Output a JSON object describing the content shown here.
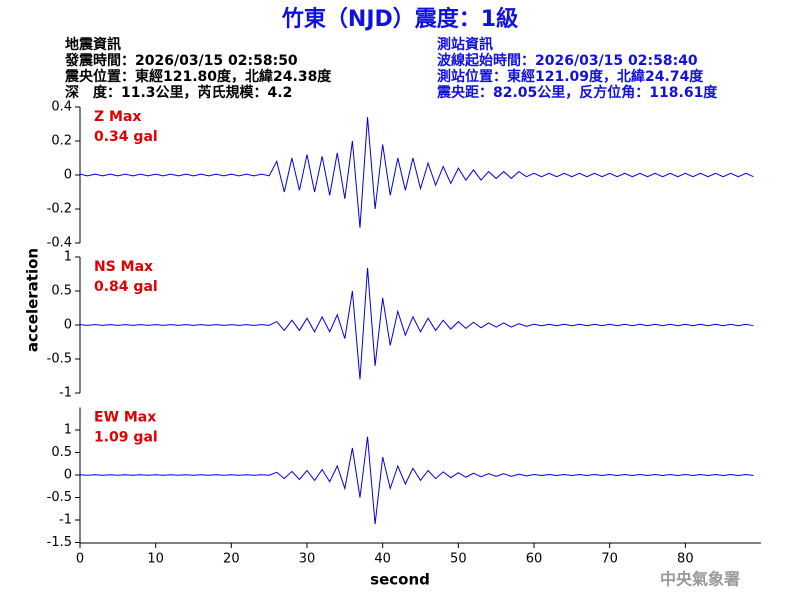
{
  "chart_data": {
    "type": "line",
    "title": "竹東（NJD）震度：1級",
    "info_left": [
      "地震資訊",
      "發震時間：2026/03/15 02:58:50",
      "震央位置：東經121.80度，北緯24.38度",
      "深　度：11.3公里，芮氏規模：4.2"
    ],
    "info_right": [
      "測站資訊",
      "波線起始時間：2026/03/15 02:58:40",
      "測站位置：東經121.09度，北緯24.74度",
      "震央距：82.05公里，反方位角：118.61度"
    ],
    "ylabel": "acceleration",
    "xlabel": "second",
    "credit": "中央氣象署",
    "xlim": [
      0,
      90
    ],
    "xticks": [
      0,
      10,
      20,
      30,
      40,
      50,
      60,
      70,
      80
    ],
    "x": [
      0,
      1,
      2,
      3,
      4,
      5,
      6,
      7,
      8,
      9,
      10,
      11,
      12,
      13,
      14,
      15,
      16,
      17,
      18,
      19,
      20,
      21,
      22,
      23,
      24,
      25,
      26,
      27,
      28,
      29,
      30,
      31,
      32,
      33,
      34,
      35,
      36,
      37,
      38,
      39,
      40,
      41,
      42,
      43,
      44,
      45,
      46,
      47,
      48,
      49,
      50,
      51,
      52,
      53,
      54,
      55,
      56,
      57,
      58,
      59,
      60,
      61,
      62,
      63,
      64,
      65,
      66,
      67,
      68,
      69,
      70,
      71,
      72,
      73,
      74,
      75,
      76,
      77,
      78,
      79,
      80,
      81,
      82,
      83,
      84,
      85,
      86,
      87,
      88,
      89
    ],
    "panels": [
      {
        "name": "Z Max",
        "peak": "0.34 gal",
        "color": "#0000e0",
        "ylim": [
          -0.4,
          0.4
        ],
        "yticks": [
          -0.4,
          -0.2,
          0,
          0.2,
          0.4
        ],
        "values": [
          0.005,
          -0.005,
          0.005,
          -0.005,
          0.005,
          -0.005,
          0.005,
          -0.005,
          0.005,
          -0.005,
          0.005,
          -0.005,
          0.005,
          -0.005,
          0.005,
          -0.005,
          0.005,
          -0.005,
          0.005,
          -0.005,
          0.005,
          -0.005,
          0.005,
          -0.005,
          0.005,
          -0.005,
          0.08,
          -0.1,
          0.1,
          -0.09,
          0.12,
          -0.1,
          0.11,
          -0.12,
          0.13,
          -0.14,
          0.2,
          -0.31,
          0.34,
          -0.2,
          0.18,
          -0.12,
          0.1,
          -0.09,
          0.1,
          -0.08,
          0.07,
          -0.06,
          0.05,
          -0.05,
          0.04,
          -0.03,
          0.03,
          -0.03,
          0.02,
          -0.02,
          0.02,
          -0.02,
          0.02,
          -0.01,
          0.01,
          -0.01,
          0.01,
          -0.01,
          0.01,
          -0.01,
          0.01,
          -0.01,
          0.01,
          -0.01,
          0.01,
          -0.01,
          0.01,
          -0.01,
          0.01,
          -0.01,
          0.01,
          -0.01,
          0.01,
          -0.01,
          0.01,
          -0.01,
          0.01,
          -0.01,
          0.01,
          -0.01,
          0.01,
          -0.01,
          0.01,
          -0.01
        ]
      },
      {
        "name": "NS Max",
        "peak": "0.84 gal",
        "color": "#0000e0",
        "ylim": [
          -1,
          1
        ],
        "yticks": [
          -1,
          -0.5,
          0,
          0.5,
          1
        ],
        "values": [
          0.005,
          -0.005,
          0.005,
          -0.005,
          0.005,
          -0.005,
          0.005,
          -0.005,
          0.005,
          -0.005,
          0.005,
          -0.005,
          0.005,
          -0.005,
          0.005,
          -0.005,
          0.005,
          -0.005,
          0.005,
          -0.005,
          0.005,
          -0.005,
          0.005,
          -0.005,
          0.005,
          -0.005,
          0.05,
          -0.08,
          0.07,
          -0.08,
          0.1,
          -0.1,
          0.12,
          -0.1,
          0.15,
          -0.2,
          0.5,
          -0.8,
          0.84,
          -0.6,
          0.4,
          -0.3,
          0.2,
          -0.15,
          0.12,
          -0.1,
          0.1,
          -0.08,
          0.07,
          -0.06,
          0.05,
          -0.05,
          0.04,
          -0.04,
          0.03,
          -0.03,
          0.03,
          -0.03,
          0.02,
          -0.02,
          0.01,
          -0.01,
          0.01,
          -0.01,
          0.01,
          -0.01,
          0.01,
          -0.01,
          0.01,
          -0.01,
          0.01,
          -0.01,
          0.01,
          -0.01,
          0.01,
          -0.01,
          0.01,
          -0.01,
          0.01,
          -0.01,
          0.01,
          -0.01,
          0.01,
          -0.01,
          0.01,
          -0.01,
          0.01,
          -0.01,
          0.01,
          -0.01
        ]
      },
      {
        "name": "EW Max",
        "peak": "1.09 gal",
        "color": "#0000e0",
        "ylim": [
          -1.5,
          1.5
        ],
        "yticks": [
          -1.5,
          -1,
          -0.5,
          0,
          0.5,
          1
        ],
        "values": [
          0.005,
          -0.005,
          0.005,
          -0.005,
          0.005,
          -0.005,
          0.005,
          -0.005,
          0.005,
          -0.005,
          0.005,
          -0.005,
          0.005,
          -0.005,
          0.005,
          -0.005,
          0.005,
          -0.005,
          0.005,
          -0.005,
          0.005,
          -0.005,
          0.005,
          -0.005,
          0.005,
          -0.005,
          0.06,
          -0.08,
          0.08,
          -0.1,
          0.1,
          -0.12,
          0.12,
          -0.15,
          0.2,
          -0.3,
          0.6,
          -0.5,
          0.85,
          -1.09,
          0.4,
          -0.3,
          0.2,
          -0.2,
          0.15,
          -0.12,
          0.1,
          -0.08,
          0.07,
          -0.06,
          0.05,
          -0.05,
          0.04,
          -0.04,
          0.03,
          -0.03,
          0.03,
          -0.03,
          0.02,
          -0.02,
          0.01,
          -0.01,
          0.01,
          -0.01,
          0.01,
          -0.01,
          0.01,
          -0.01,
          0.01,
          -0.01,
          0.01,
          -0.01,
          0.01,
          -0.01,
          0.01,
          -0.01,
          0.01,
          -0.01,
          0.01,
          -0.01,
          0.01,
          -0.01,
          0.01,
          -0.01,
          0.01,
          -0.01,
          0.01,
          -0.01,
          0.01,
          -0.01
        ]
      }
    ]
  }
}
